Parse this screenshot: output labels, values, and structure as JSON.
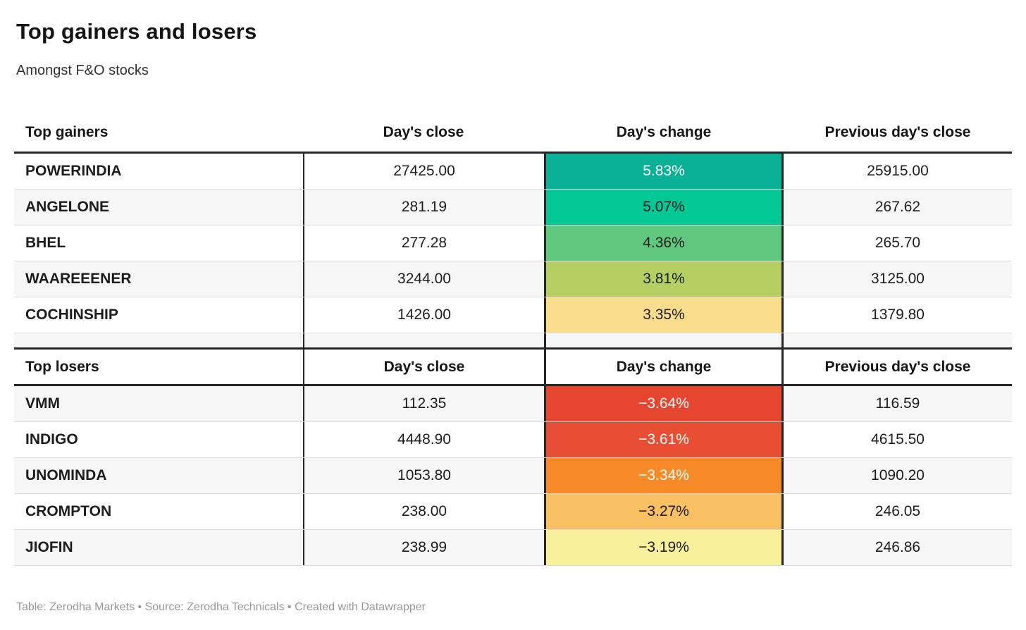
{
  "title": "Top gainers and losers",
  "subtitle": "Amongst F&O stocks",
  "footer": "Table: Zerodha Markets • Source: Zerodha Technicals • Created with Datawrapper",
  "colors": {
    "rule": "#262626",
    "row_alt": "#f6f6f6",
    "footer_text": "#979797"
  },
  "gainers": {
    "columns": {
      "name": "Top gainers",
      "close": "Day's close",
      "change": "Day's change",
      "prev": "Previous day's close"
    },
    "rows": [
      {
        "name": "POWERINDIA",
        "close": "27425.00",
        "change": "5.83%",
        "prev": "25915.00",
        "change_bg": "#0bb197",
        "change_fg": "#ffffff"
      },
      {
        "name": "ANGELONE",
        "close": "281.19",
        "change": "5.07%",
        "prev": "267.62",
        "change_bg": "#03c896",
        "change_fg": "#1d1d1d"
      },
      {
        "name": "BHEL",
        "close": "277.28",
        "change": "4.36%",
        "prev": "265.70",
        "change_bg": "#60c87e",
        "change_fg": "#1d1d1d"
      },
      {
        "name": "WAAREEENER",
        "close": "3244.00",
        "change": "3.81%",
        "prev": "3125.00",
        "change_bg": "#b5cf62",
        "change_fg": "#1d1d1d"
      },
      {
        "name": "COCHINSHIP",
        "close": "1426.00",
        "change": "3.35%",
        "prev": "1379.80",
        "change_bg": "#f9dd8d",
        "change_fg": "#1d1d1d"
      }
    ]
  },
  "losers": {
    "columns": {
      "name": "Top losers",
      "close": "Day's close",
      "change": "Day's change",
      "prev": "Previous day's close"
    },
    "rows": [
      {
        "name": "VMM",
        "close": "112.35",
        "change": "−3.64%",
        "prev": "116.59",
        "change_bg": "#e64630",
        "change_fg": "#ffffff"
      },
      {
        "name": "INDIGO",
        "close": "4448.90",
        "change": "−3.61%",
        "prev": "4615.50",
        "change_bg": "#e74e34",
        "change_fg": "#ffffff"
      },
      {
        "name": "UNOMINDA",
        "close": "1053.80",
        "change": "−3.34%",
        "prev": "1090.20",
        "change_bg": "#f78a28",
        "change_fg": "#ffffff"
      },
      {
        "name": "CROMPTON",
        "close": "238.00",
        "change": "−3.27%",
        "prev": "246.05",
        "change_bg": "#f9bf63",
        "change_fg": "#1d1d1d"
      },
      {
        "name": "JIOFIN",
        "close": "238.99",
        "change": "−3.19%",
        "prev": "246.86",
        "change_bg": "#f9f09b",
        "change_fg": "#1d1d1d"
      }
    ]
  },
  "chart_data": [
    {
      "type": "table",
      "title": "Top gainers",
      "columns": [
        "Top gainers",
        "Day's close",
        "Day's change",
        "Previous day's close"
      ],
      "rows": [
        [
          "POWERINDIA",
          27425.0,
          "5.83%",
          25915.0
        ],
        [
          "ANGELONE",
          281.19,
          "5.07%",
          267.62
        ],
        [
          "BHEL",
          277.28,
          "4.36%",
          265.7
        ],
        [
          "WAAREEENER",
          3244.0,
          "3.81%",
          3125.0
        ],
        [
          "COCHINSHIP",
          1426.0,
          "3.35%",
          1379.8
        ]
      ]
    },
    {
      "type": "table",
      "title": "Top losers",
      "columns": [
        "Top losers",
        "Day's close",
        "Day's change",
        "Previous day's close"
      ],
      "rows": [
        [
          "VMM",
          112.35,
          "-3.64%",
          116.59
        ],
        [
          "INDIGO",
          4448.9,
          "-3.61%",
          4615.5
        ],
        [
          "UNOMINDA",
          1053.8,
          "-3.34%",
          1090.2
        ],
        [
          "CROMPTON",
          238.0,
          "-3.27%",
          246.05
        ],
        [
          "JIOFIN",
          238.99,
          "-3.19%",
          246.86
        ]
      ]
    }
  ]
}
